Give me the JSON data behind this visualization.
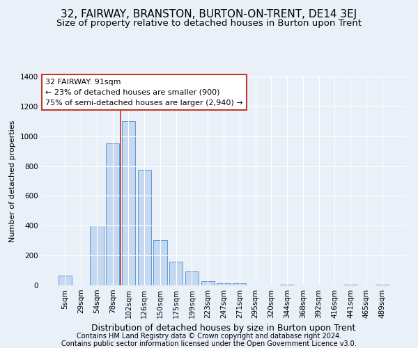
{
  "title": "32, FAIRWAY, BRANSTON, BURTON-ON-TRENT, DE14 3EJ",
  "subtitle": "Size of property relative to detached houses in Burton upon Trent",
  "xlabel": "Distribution of detached houses by size in Burton upon Trent",
  "ylabel": "Number of detached properties",
  "footnote1": "Contains HM Land Registry data © Crown copyright and database right 2024.",
  "footnote2": "Contains public sector information licensed under the Open Government Licence v3.0.",
  "bar_labels": [
    "5sqm",
    "29sqm",
    "54sqm",
    "78sqm",
    "102sqm",
    "126sqm",
    "150sqm",
    "175sqm",
    "199sqm",
    "223sqm",
    "247sqm",
    "271sqm",
    "295sqm",
    "320sqm",
    "344sqm",
    "368sqm",
    "392sqm",
    "416sqm",
    "441sqm",
    "465sqm",
    "489sqm"
  ],
  "bar_values": [
    65,
    0,
    400,
    950,
    1100,
    775,
    305,
    160,
    95,
    30,
    12,
    12,
    0,
    0,
    5,
    0,
    0,
    0,
    5,
    0,
    5
  ],
  "bar_color": "#c5d8f0",
  "bar_edge_color": "#5b9bd5",
  "vline_pos": 3.5,
  "vline_color": "#c0392b",
  "annotation_text": "32 FAIRWAY: 91sqm\n← 23% of detached houses are smaller (900)\n75% of semi-detached houses are larger (2,940) →",
  "annotation_box_color": "white",
  "annotation_box_edge_color": "#c0392b",
  "ylim": [
    0,
    1400
  ],
  "yticks": [
    0,
    200,
    400,
    600,
    800,
    1000,
    1200,
    1400
  ],
  "title_fontsize": 11,
  "subtitle_fontsize": 9.5,
  "xlabel_fontsize": 9,
  "ylabel_fontsize": 8,
  "tick_fontsize": 7.5,
  "annotation_fontsize": 8,
  "footnote_fontsize": 7,
  "background_color": "#eaf0f8",
  "plot_bg_color": "#eaf0f8"
}
